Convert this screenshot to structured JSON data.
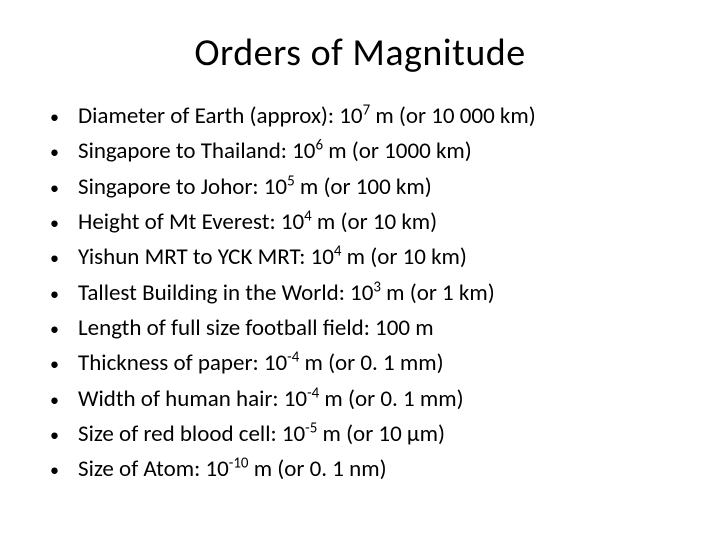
{
  "title": "Orders of Magnitude",
  "items": [
    {
      "prefix": "Diameter of Earth (approx): 10",
      "exp": "7",
      "suffix": " m (or 10 000 km)"
    },
    {
      "prefix": "Singapore to Thailand: 10",
      "exp": "6",
      "suffix": " m (or 1000 km)"
    },
    {
      "prefix": "Singapore to Johor: 10",
      "exp": "5",
      "suffix": " m (or 100 km)"
    },
    {
      "prefix": "Height of Mt Everest: 10",
      "exp": "4",
      "suffix": " m (or 10 km)"
    },
    {
      "prefix": "Yishun MRT to YCK MRT: 10",
      "exp": "4",
      "suffix": " m (or 10 km)"
    },
    {
      "prefix": "Tallest Building in the World: 10",
      "exp": "3",
      "suffix": " m (or 1 km)"
    },
    {
      "prefix": "Length of full size football field: 100 m",
      "exp": "",
      "suffix": ""
    },
    {
      "prefix": "Thickness of paper: 10",
      "exp": "-4",
      "suffix": " m (or 0. 1 mm)"
    },
    {
      "prefix": "Width of human hair: 10",
      "exp": "-4",
      "suffix": " m (or 0. 1 mm)"
    },
    {
      "prefix": "Size of red blood cell: 10",
      "exp": "-5",
      "suffix": " m (or 10 µm)"
    },
    {
      "prefix": "Size of Atom: 10",
      "exp": "-10",
      "suffix": " m (or 0. 1 nm)"
    }
  ],
  "styling": {
    "background_color": "#ffffff",
    "text_color": "#000000",
    "title_fontsize": 38,
    "body_fontsize": 23,
    "sup_fontsize_ratio": 0.65,
    "font_family": "Calibri, Arial, sans-serif",
    "bullet_char": "•"
  }
}
